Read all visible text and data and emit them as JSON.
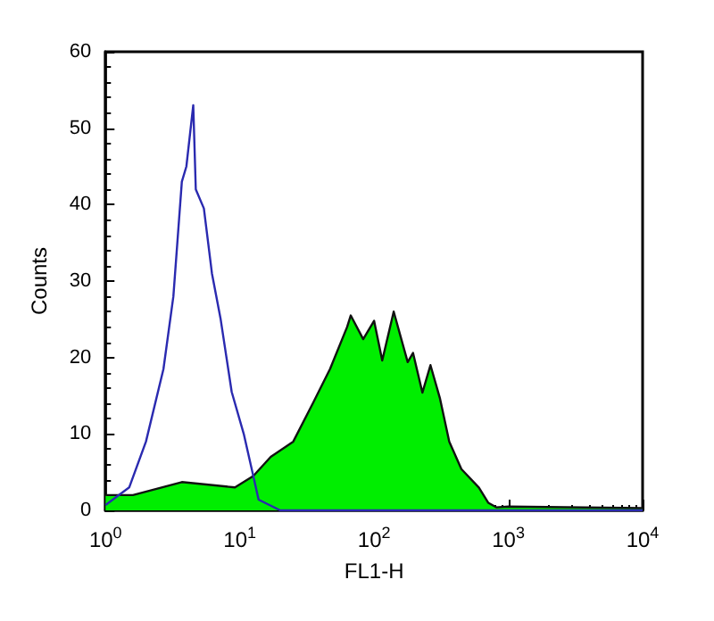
{
  "chart_data": {
    "type": "line",
    "xlabel": "FL1-H",
    "ylabel": "Counts",
    "log": "x",
    "xlim": [
      1,
      10000
    ],
    "ylim": [
      0,
      60
    ],
    "xticks": [
      {
        "value": 1,
        "label": "10$^{0}$"
      },
      {
        "value": 10,
        "label": "10$^{1}$"
      },
      {
        "value": 100,
        "label": "10$^{2}$"
      },
      {
        "value": 1000,
        "label": "10$^{3}$"
      },
      {
        "value": 10000,
        "label": "10$^{4}$"
      }
    ],
    "yticks": [
      0,
      10,
      20,
      30,
      40,
      50,
      60
    ],
    "grid": false,
    "marker": "none",
    "line_style": "solid",
    "series": [
      {
        "type": "area",
        "color": "#00ee00",
        "x": [
          1,
          1.6,
          3.7,
          9.2,
          12.6,
          17,
          25,
          35,
          47,
          63,
          67,
          83,
          100,
          115,
          140,
          178,
          195,
          229,
          263,
          309,
          363,
          447,
          603,
          708,
          813,
          1000,
          10000
        ],
        "values": [
          2,
          2,
          3.7,
          3,
          4.5,
          7,
          9,
          14,
          18.5,
          24,
          25.5,
          22.4,
          24.8,
          19.6,
          26,
          19.4,
          20.6,
          15.4,
          19,
          14.7,
          9,
          5.4,
          3,
          1,
          0.4,
          0.5,
          0.3
        ]
      },
      {
        "color": "#2a2ab0",
        "x": [
          1,
          1.5,
          2,
          2.7,
          3.2,
          3.7,
          4,
          4.5,
          4.7,
          5.4,
          6.2,
          7.2,
          8.7,
          10.7,
          12.6,
          13.8,
          20,
          10000
        ],
        "values": [
          0.7,
          3,
          9,
          18.5,
          28,
          43,
          45,
          53,
          42,
          39.5,
          31,
          25,
          15.5,
          10,
          4.5,
          1.4,
          0,
          0
        ]
      }
    ]
  }
}
